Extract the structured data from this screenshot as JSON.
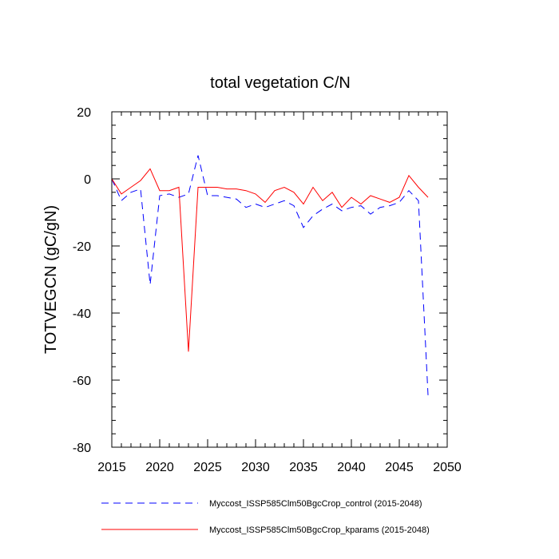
{
  "chart_data": {
    "type": "line",
    "title": "total vegetation C/N",
    "xlabel": "",
    "ylabel": "TOTVEGCN  (gC/gN)",
    "xlim": [
      2015,
      2050
    ],
    "ylim": [
      -80,
      20
    ],
    "xticks": [
      2015,
      2020,
      2025,
      2030,
      2035,
      2040,
      2045,
      2050
    ],
    "yticks": [
      -80,
      -60,
      -40,
      -20,
      0,
      20
    ],
    "legend_position": "bottom",
    "x": [
      2015,
      2016,
      2017,
      2018,
      2019,
      2020,
      2021,
      2022,
      2023,
      2024,
      2025,
      2026,
      2027,
      2028,
      2029,
      2030,
      2031,
      2032,
      2033,
      2034,
      2035,
      2036,
      2037,
      2038,
      2039,
      2040,
      2041,
      2042,
      2043,
      2044,
      2045,
      2046,
      2047,
      2048
    ],
    "series": [
      {
        "name": "Myccost_ISSP585Clm50BgcCrop_control (2015-2048)",
        "color": "#0000ff",
        "dash": "dashed",
        "values": [
          0,
          -6.5,
          -4,
          -3,
          -31.5,
          -5,
          -4.5,
          -5.5,
          -4.5,
          7,
          -5,
          -5,
          -5.5,
          -6,
          -8.5,
          -7.5,
          -8.5,
          -7.5,
          -6.5,
          -8,
          -14.5,
          -11,
          -9,
          -7.5,
          -9.5,
          -8.5,
          -8,
          -10.5,
          -8.5,
          -8,
          -7,
          -3.5,
          -6.5,
          -64.5
        ]
      },
      {
        "name": "Myccost_ISSP585Clm50BgcCrop_kparams (2015-2048)",
        "color": "#ff0000",
        "dash": "solid",
        "values": [
          0,
          -4.5,
          -2.5,
          -0.5,
          3,
          -3.5,
          -3.5,
          -2.5,
          -51.5,
          -2.5,
          -2.5,
          -2.5,
          -3,
          -3,
          -3.5,
          -4.5,
          -7,
          -3.5,
          -2.5,
          -4,
          -7.5,
          -2.5,
          -6.5,
          -4,
          -8.5,
          -5.5,
          -7.5,
          -5,
          -6,
          -7,
          -5.5,
          1,
          -2.5,
          -5.5
        ]
      }
    ]
  }
}
